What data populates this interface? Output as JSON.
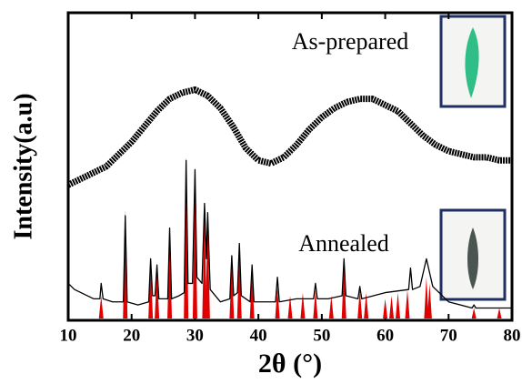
{
  "chart_data": {
    "type": "line",
    "x_label": "2θ (°)",
    "y_label": "Intensity(a.u)",
    "xlim": [
      10,
      80
    ],
    "xticks": [
      10,
      20,
      30,
      40,
      50,
      60,
      70,
      80
    ],
    "ylim": [
      0,
      100
    ],
    "series": [
      {
        "name": "As-prepared",
        "color": "#000000",
        "x": [
          10,
          12,
          14,
          16,
          18,
          20,
          22,
          24,
          26,
          28,
          30,
          32,
          34,
          36,
          38,
          40,
          42,
          44,
          46,
          48,
          50,
          52,
          54,
          56,
          58,
          60,
          62,
          64,
          66,
          68,
          70,
          72,
          74,
          76,
          78,
          80
        ],
        "values": [
          44,
          46,
          48,
          50,
          54,
          58,
          63,
          68,
          72,
          74,
          75,
          73,
          69,
          63,
          56,
          52,
          51,
          53,
          57,
          62,
          66,
          69,
          71,
          72,
          72,
          70,
          68,
          64,
          60,
          57,
          55,
          54,
          53,
          53,
          52,
          52
        ]
      },
      {
        "name": "Annealed",
        "color": "#000000",
        "x": [
          10,
          11,
          12,
          13,
          14,
          15,
          15.2,
          15.5,
          17,
          18.7,
          19,
          19.3,
          21,
          22.7,
          23,
          23.3,
          23.7,
          24,
          24.3,
          25.7,
          26,
          26.3,
          27.5,
          28.3,
          28.6,
          28.9,
          29.6,
          30,
          30.3,
          31.1,
          31.5,
          31.8,
          32,
          32.4,
          34,
          35.5,
          35.8,
          36.1,
          36.7,
          37,
          37.3,
          38.7,
          39,
          39.3,
          41,
          42.7,
          43,
          43.3,
          46,
          48.7,
          49,
          49.3,
          51,
          53.2,
          53.5,
          53.8,
          55.7,
          56,
          56.3,
          60,
          63.7,
          64,
          64.3,
          65.5,
          66.5,
          67.5,
          70,
          73.7,
          74,
          74.3,
          77.7,
          78,
          78.3,
          80
        ],
        "values": [
          12,
          10,
          9,
          8,
          7,
          7,
          12,
          7,
          6,
          6,
          34,
          6,
          5,
          6,
          20,
          8,
          8,
          18,
          7,
          7,
          30,
          7,
          8,
          9,
          52,
          12,
          12,
          49,
          14,
          12,
          38,
          20,
          35,
          10,
          6,
          7,
          21,
          8,
          9,
          25,
          8,
          6,
          18,
          6,
          6,
          6,
          14,
          6,
          7,
          7,
          12,
          7,
          7,
          8,
          20,
          8,
          7,
          11,
          7,
          9,
          10,
          17,
          10,
          11,
          20,
          11,
          6,
          4,
          5,
          4,
          4,
          4,
          4,
          4
        ]
      }
    ],
    "reference_peaks": {
      "color": "#e00000",
      "x": [
        15.2,
        19,
        23,
        24,
        26,
        28.6,
        30,
        31.5,
        32,
        35.8,
        37,
        39,
        43,
        45,
        47,
        49,
        51.5,
        53.5,
        56,
        57,
        60,
        61,
        62,
        63.5,
        66.5,
        67,
        74,
        78
      ],
      "values": [
        8,
        36,
        18,
        16,
        28,
        53,
        48,
        36,
        33,
        18,
        22,
        15,
        11,
        8,
        9,
        10,
        8,
        18,
        10,
        9,
        7,
        8,
        9,
        10,
        14,
        12,
        4,
        4
      ]
    }
  }
}
